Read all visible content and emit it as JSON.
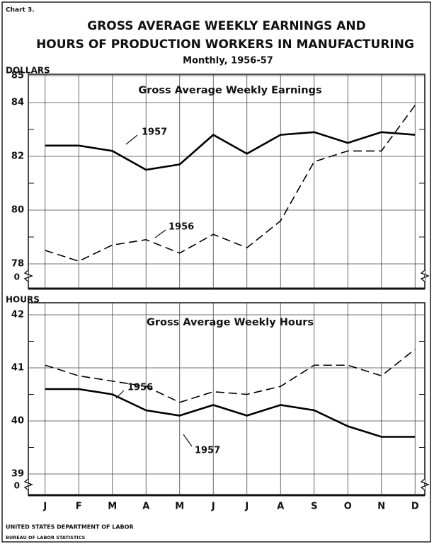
{
  "chart_label": "Chart 3.",
  "title": [
    "GROSS AVERAGE WEEKLY EARNINGS AND",
    "HOURS OF PRODUCTION WORKERS IN MANUFACTURING"
  ],
  "subtitle": "Monthly, 1956-57",
  "source": [
    "UNITED STATES DEPARTMENT OF LABOR",
    "BUREAU OF LABOR STATISTICS"
  ],
  "chart_data": [
    {
      "type": "line",
      "title": "Gross Average Weekly Earnings",
      "ylabel": "DOLLARS",
      "series": [
        {
          "name": "1957",
          "color": "#000",
          "dash": false,
          "values": [
            82.4,
            82.4,
            82.2,
            81.5,
            81.7,
            82.8,
            82.1,
            82.8,
            82.9,
            82.5,
            82.9,
            82.8
          ]
        },
        {
          "name": "1956",
          "color": "#000",
          "dash": true,
          "values": [
            78.5,
            78.1,
            78.7,
            78.9,
            78.4,
            79.1,
            78.6,
            79.6,
            81.8,
            82.2,
            82.2,
            83.9
          ]
        }
      ],
      "ylim": [
        78,
        85
      ],
      "yticks": [
        85,
        84,
        82,
        80,
        78
      ],
      "yticks_minor": [
        83,
        81,
        79
      ],
      "axis_break_value": 0
    },
    {
      "type": "line",
      "title": "Gross Average Weekly Hours",
      "ylabel": "HOURS",
      "categories": [
        "J",
        "F",
        "M",
        "A",
        "M",
        "J",
        "J",
        "A",
        "S",
        "O",
        "N",
        "D"
      ],
      "series": [
        {
          "name": "1956",
          "color": "#000",
          "dash": true,
          "values": [
            41.05,
            40.85,
            40.75,
            40.65,
            40.35,
            40.55,
            40.5,
            40.65,
            41.05,
            41.05,
            40.85,
            41.35
          ]
        },
        {
          "name": "1957",
          "color": "#000",
          "dash": false,
          "values": [
            40.6,
            40.6,
            40.5,
            40.2,
            40.1,
            40.3,
            40.1,
            40.3,
            40.2,
            39.9,
            39.7,
            39.7
          ]
        }
      ],
      "ylim": [
        39,
        42
      ],
      "yticks": [
        42,
        41,
        40,
        39
      ],
      "yticks_minor": [
        41.5,
        40.5,
        39.5
      ],
      "axis_break_value": 0
    }
  ]
}
